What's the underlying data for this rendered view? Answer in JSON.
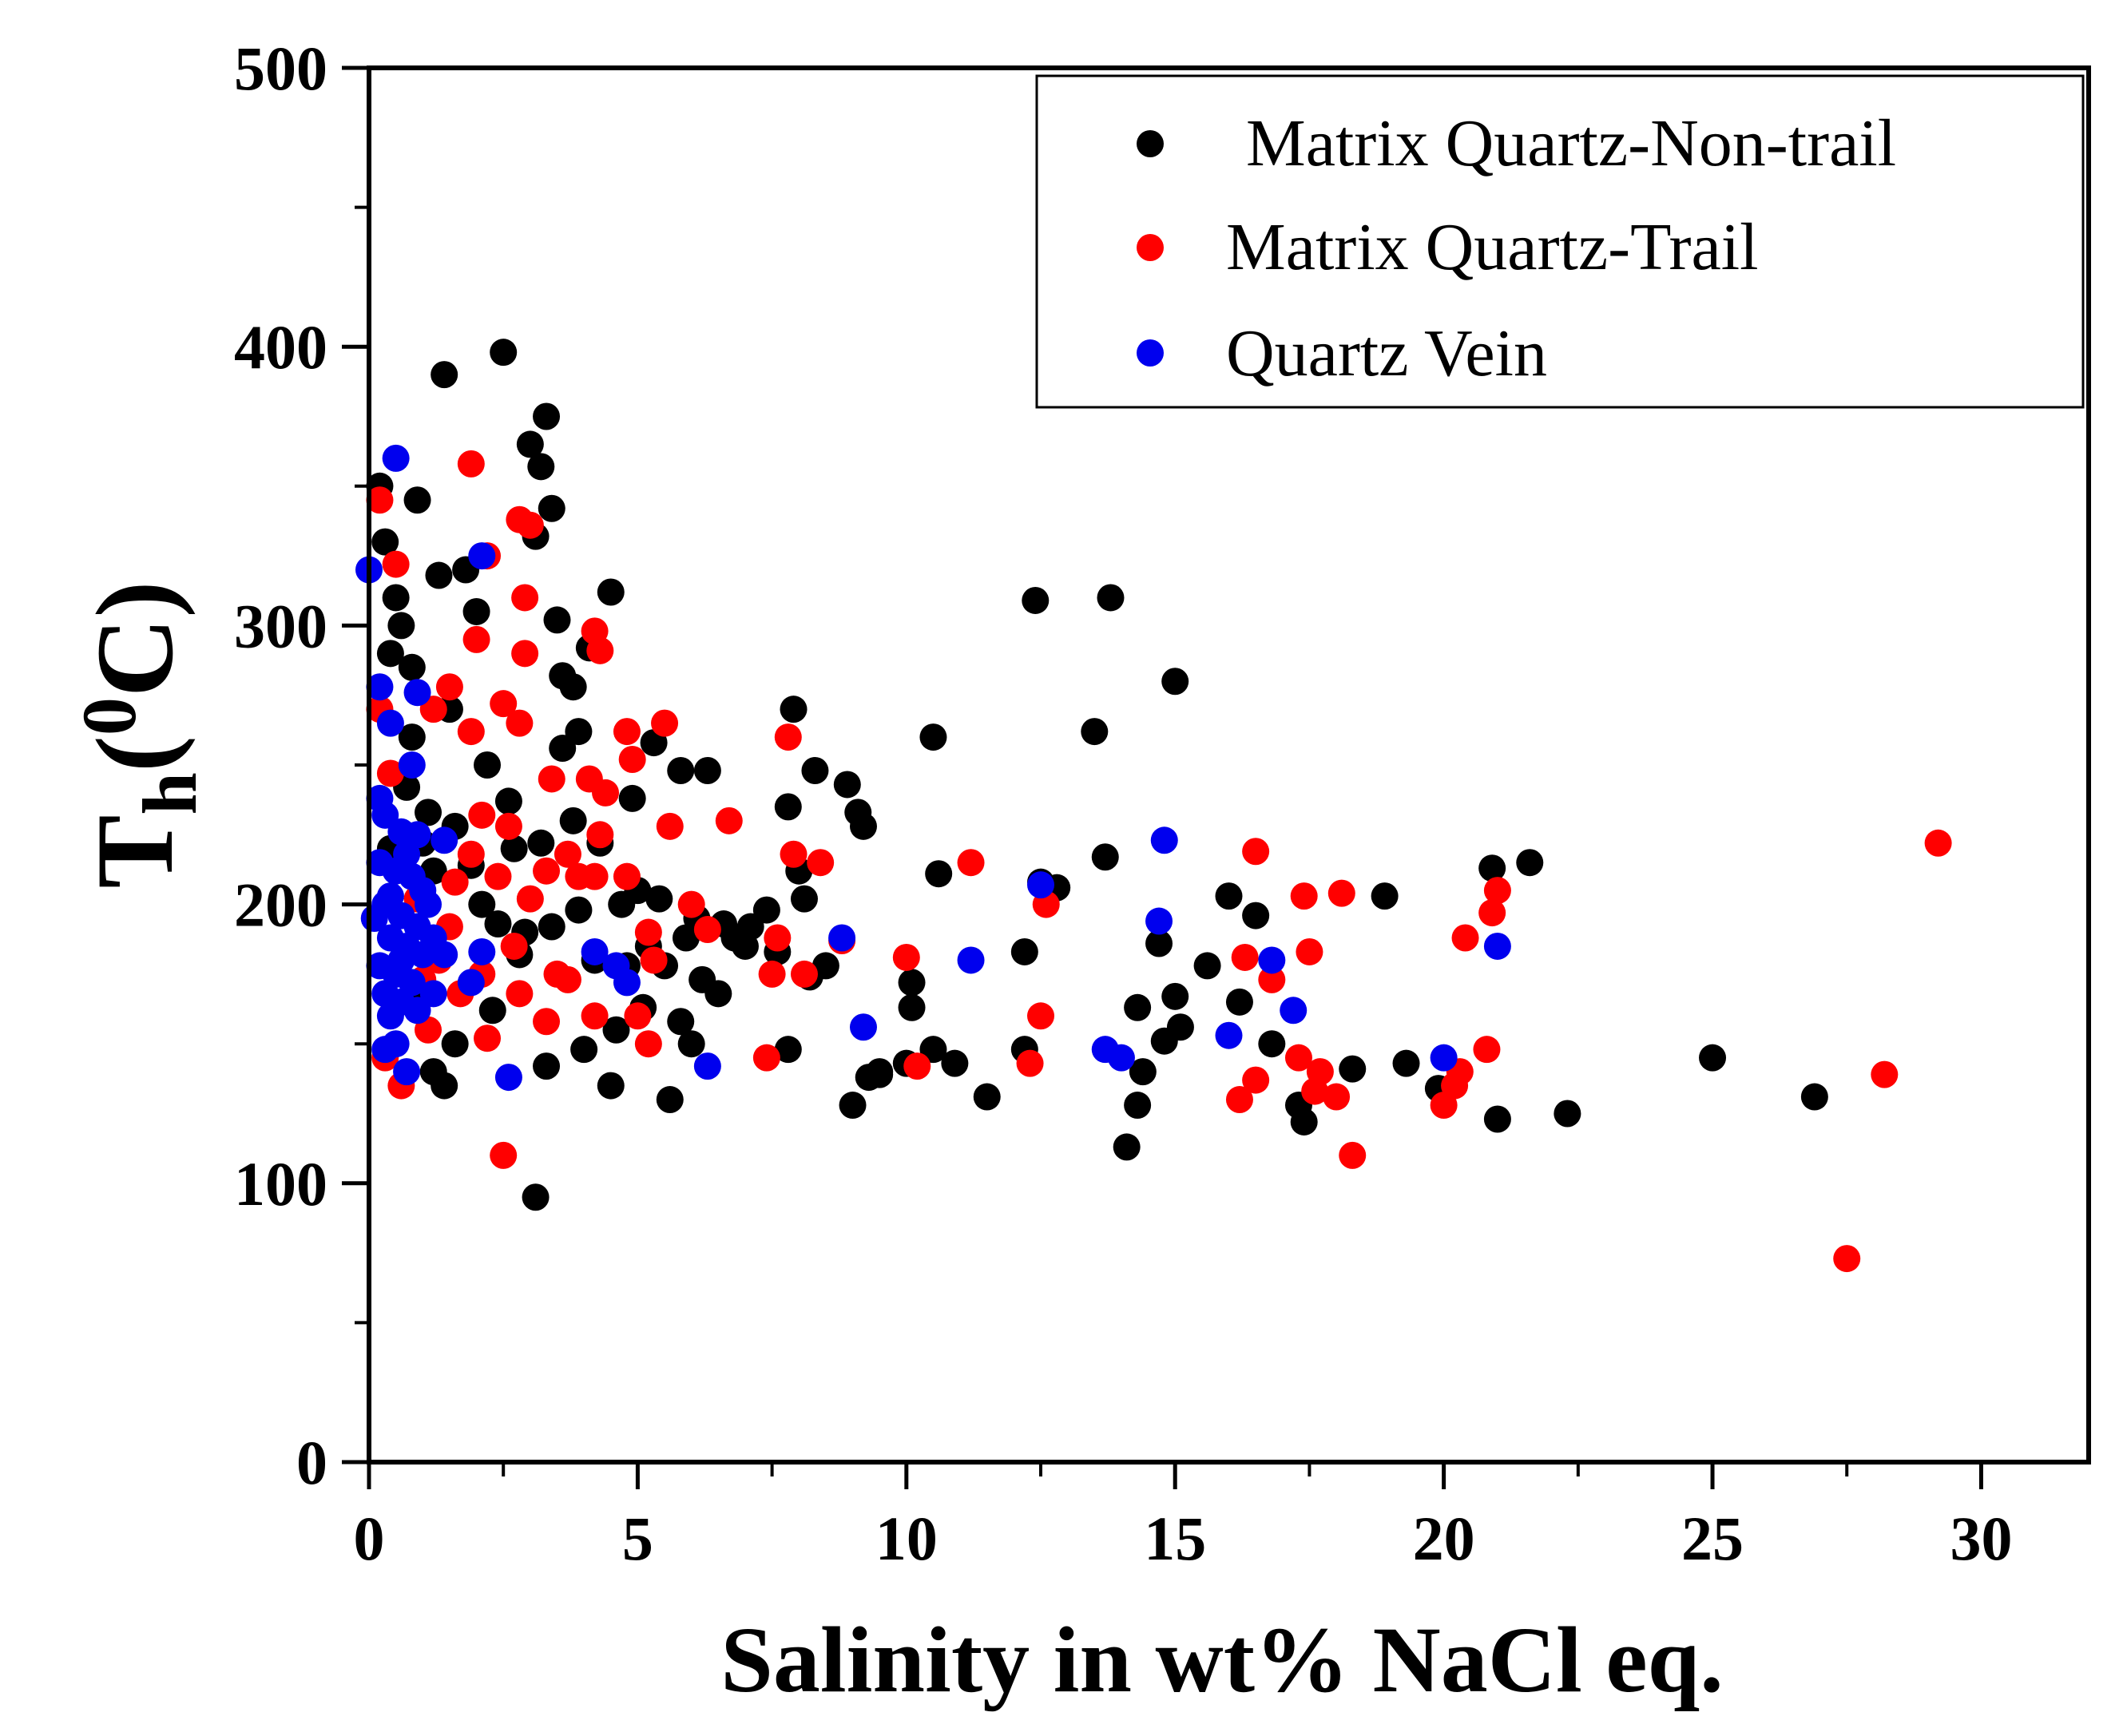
{
  "chart_data": {
    "type": "scatter",
    "xlabel": "Salinity in wt% NaCl eq.",
    "ylabel": {
      "main": "T",
      "sub": "h",
      "open": "(",
      "sup": "0",
      "unit": "C)"
    },
    "xlim": [
      0,
      32
    ],
    "ylim": [
      0,
      500
    ],
    "xticks": [
      0,
      5,
      10,
      15,
      20,
      25,
      30
    ],
    "yticks": [
      0,
      100,
      200,
      300,
      400,
      500
    ],
    "legend_position": "top-right",
    "series": [
      {
        "name": "Matrix Quartz-Non-trail",
        "color": "#000000",
        "points": [
          [
            0.2,
            350
          ],
          [
            0.3,
            330
          ],
          [
            0.5,
            310
          ],
          [
            0.6,
            300
          ],
          [
            0.4,
            290
          ],
          [
            0.8,
            285
          ],
          [
            0.9,
            345
          ],
          [
            1.3,
            318
          ],
          [
            1.8,
            320
          ],
          [
            2.0,
            305
          ],
          [
            2.5,
            398
          ],
          [
            1.4,
            390
          ],
          [
            3.0,
            365
          ],
          [
            3.3,
            375
          ],
          [
            3.2,
            357
          ],
          [
            3.4,
            342
          ],
          [
            3.1,
            332
          ],
          [
            3.5,
            302
          ],
          [
            3.6,
            282
          ],
          [
            3.9,
            262
          ],
          [
            4.1,
            292
          ],
          [
            3.8,
            278
          ],
          [
            4.5,
            312
          ],
          [
            4.9,
            238
          ],
          [
            5.3,
            258
          ],
          [
            5.8,
            248
          ],
          [
            6.3,
            248
          ],
          [
            5.9,
            188
          ],
          [
            5.5,
            178
          ],
          [
            5.1,
            163
          ],
          [
            5.8,
            158
          ],
          [
            6.2,
            173
          ],
          [
            6.6,
            193
          ],
          [
            6.8,
            188
          ],
          [
            7.1,
            192
          ],
          [
            7.6,
            183
          ],
          [
            7.4,
            198
          ],
          [
            7.8,
            148
          ],
          [
            8.1,
            202
          ],
          [
            8.5,
            178
          ],
          [
            8.3,
            248
          ],
          [
            8.9,
            243
          ],
          [
            9.1,
            233
          ],
          [
            9.2,
            228
          ],
          [
            9.0,
            128
          ],
          [
            9.3,
            138
          ],
          [
            9.5,
            140
          ],
          [
            10.0,
            143
          ],
          [
            10.1,
            172
          ],
          [
            10.1,
            163
          ],
          [
            10.5,
            148
          ],
          [
            10.6,
            211
          ],
          [
            10.5,
            260
          ],
          [
            10.9,
            143
          ],
          [
            11.5,
            131
          ],
          [
            12.2,
            148
          ],
          [
            12.2,
            183
          ],
          [
            12.4,
            309
          ],
          [
            12.5,
            208
          ],
          [
            12.8,
            206
          ],
          [
            13.5,
            262
          ],
          [
            13.8,
            310
          ],
          [
            13.7,
            217
          ],
          [
            14.1,
            113
          ],
          [
            14.3,
            163
          ],
          [
            14.3,
            128
          ],
          [
            14.4,
            140
          ],
          [
            14.7,
            186
          ],
          [
            14.8,
            151
          ],
          [
            15.0,
            167
          ],
          [
            15.1,
            156
          ],
          [
            15.0,
            280
          ],
          [
            15.6,
            178
          ],
          [
            16.0,
            203
          ],
          [
            16.2,
            165
          ],
          [
            16.5,
            196
          ],
          [
            16.8,
            150
          ],
          [
            17.3,
            128
          ],
          [
            17.4,
            122
          ],
          [
            18.3,
            141
          ],
          [
            18.9,
            203
          ],
          [
            19.3,
            143
          ],
          [
            19.9,
            134
          ],
          [
            20.9,
            213
          ],
          [
            21.0,
            123
          ],
          [
            21.6,
            215
          ],
          [
            22.3,
            125
          ],
          [
            25.0,
            145
          ],
          [
            26.9,
            131
          ],
          [
            7.9,
            270
          ],
          [
            8.2,
            174
          ],
          [
            9.5,
            139
          ],
          [
            2.2,
            250
          ],
          [
            1.1,
            233
          ],
          [
            0.8,
            260
          ],
          [
            1.5,
            270
          ],
          [
            2.7,
            220
          ],
          [
            1.6,
            150
          ],
          [
            0.9,
            165
          ],
          [
            1.2,
            140
          ],
          [
            1.4,
            135
          ],
          [
            2.3,
            162
          ],
          [
            2.8,
            182
          ],
          [
            3.1,
            95
          ],
          [
            3.3,
            142
          ],
          [
            3.8,
            230
          ],
          [
            4.0,
            148
          ],
          [
            4.2,
            180
          ],
          [
            4.5,
            135
          ],
          [
            4.7,
            200
          ],
          [
            5.0,
            205
          ],
          [
            5.6,
            130
          ],
          [
            6.0,
            150
          ],
          [
            6.5,
            168
          ],
          [
            7.0,
            185
          ],
          [
            7.8,
            235
          ],
          [
            8.0,
            212
          ],
          [
            6.1,
            195
          ],
          [
            5.2,
            185
          ],
          [
            2.1,
            200
          ],
          [
            2.4,
            193
          ],
          [
            1.9,
            214
          ],
          [
            2.6,
            237
          ],
          [
            3.4,
            192
          ],
          [
            3.9,
            198
          ],
          [
            4.3,
            222
          ],
          [
            0.7,
            242
          ],
          [
            1.0,
            222
          ],
          [
            1.6,
            228
          ],
          [
            2.9,
            190
          ],
          [
            3.2,
            222
          ],
          [
            4.6,
            155
          ],
          [
            5.4,
            202
          ],
          [
            0.4,
            220
          ],
          [
            1.2,
            212
          ],
          [
            3.6,
            256
          ],
          [
            4.8,
            178
          ]
        ]
      },
      {
        "name": "Matrix Quartz-Trail",
        "color": "#ff0000",
        "points": [
          [
            0.2,
            345
          ],
          [
            0.5,
            322
          ],
          [
            1.9,
            358
          ],
          [
            2.8,
            338
          ],
          [
            3.0,
            336
          ],
          [
            2.2,
            325
          ],
          [
            2.9,
            310
          ],
          [
            2.0,
            295
          ],
          [
            2.9,
            290
          ],
          [
            4.2,
            298
          ],
          [
            4.3,
            291
          ],
          [
            1.5,
            278
          ],
          [
            1.2,
            270
          ],
          [
            1.9,
            262
          ],
          [
            2.5,
            272
          ],
          [
            2.8,
            265
          ],
          [
            2.6,
            228
          ],
          [
            3.4,
            245
          ],
          [
            4.8,
            262
          ],
          [
            5.5,
            265
          ],
          [
            4.9,
            252
          ],
          [
            2.1,
            232
          ],
          [
            1.9,
            218
          ],
          [
            2.4,
            210
          ],
          [
            3.3,
            212
          ],
          [
            3.7,
            218
          ],
          [
            3.9,
            210
          ],
          [
            4.3,
            225
          ],
          [
            4.2,
            210
          ],
          [
            4.8,
            210
          ],
          [
            5.2,
            190
          ],
          [
            5.6,
            228
          ],
          [
            6.3,
            191
          ],
          [
            6.7,
            230
          ],
          [
            7.5,
            175
          ],
          [
            7.6,
            188
          ],
          [
            7.9,
            218
          ],
          [
            7.8,
            260
          ],
          [
            8.1,
            175
          ],
          [
            7.4,
            145
          ],
          [
            8.4,
            215
          ],
          [
            8.8,
            187
          ],
          [
            10.0,
            181
          ],
          [
            10.2,
            142
          ],
          [
            11.2,
            215
          ],
          [
            12.3,
            143
          ],
          [
            12.5,
            160
          ],
          [
            12.6,
            200
          ],
          [
            16.2,
            130
          ],
          [
            16.5,
            219
          ],
          [
            16.3,
            181
          ],
          [
            16.8,
            173
          ],
          [
            17.4,
            203
          ],
          [
            17.5,
            183
          ],
          [
            17.3,
            145
          ],
          [
            17.7,
            140
          ],
          [
            17.6,
            133
          ],
          [
            18.0,
            131
          ],
          [
            18.1,
            204
          ],
          [
            18.3,
            110
          ],
          [
            20.0,
            128
          ],
          [
            20.2,
            135
          ],
          [
            20.3,
            140
          ],
          [
            20.4,
            188
          ],
          [
            20.8,
            148
          ],
          [
            20.9,
            197
          ],
          [
            21.0,
            205
          ],
          [
            27.5,
            73
          ],
          [
            28.2,
            139
          ],
          [
            29.2,
            222
          ],
          [
            2.5,
            110
          ],
          [
            0.6,
            135
          ],
          [
            0.3,
            145
          ],
          [
            1.1,
            155
          ],
          [
            1.7,
            168
          ],
          [
            2.2,
            152
          ],
          [
            3.3,
            158
          ],
          [
            4.2,
            160
          ],
          [
            5.2,
            150
          ],
          [
            0.2,
            270
          ],
          [
            0.4,
            247
          ],
          [
            0.9,
            202
          ],
          [
            1.3,
            180
          ],
          [
            1.5,
            192
          ],
          [
            2.7,
            185
          ],
          [
            3.0,
            202
          ],
          [
            3.5,
            175
          ],
          [
            3.7,
            173
          ],
          [
            4.1,
            245
          ],
          [
            4.4,
            240
          ],
          [
            5.0,
            160
          ],
          [
            5.3,
            180
          ],
          [
            6.0,
            200
          ],
          [
            1.6,
            208
          ],
          [
            2.1,
            175
          ],
          [
            2.8,
            168
          ],
          [
            16.5,
            137
          ],
          [
            1.0,
            173
          ]
        ]
      },
      {
        "name": "Quartz Vein",
        "color": "#0000ee",
        "points": [
          [
            0.0,
            320
          ],
          [
            0.5,
            360
          ],
          [
            2.1,
            325
          ],
          [
            0.2,
            278
          ],
          [
            0.9,
            276
          ],
          [
            0.4,
            265
          ],
          [
            0.8,
            250
          ],
          [
            0.3,
            232
          ],
          [
            0.6,
            226
          ],
          [
            0.2,
            215
          ],
          [
            0.5,
            212
          ],
          [
            0.8,
            210
          ],
          [
            1.0,
            205
          ],
          [
            0.3,
            200
          ],
          [
            0.6,
            196
          ],
          [
            0.9,
            192
          ],
          [
            0.4,
            188
          ],
          [
            0.7,
            185
          ],
          [
            1.0,
            182
          ],
          [
            0.2,
            178
          ],
          [
            0.5,
            175
          ],
          [
            0.8,
            172
          ],
          [
            0.3,
            168
          ],
          [
            0.6,
            165
          ],
          [
            0.9,
            162
          ],
          [
            0.5,
            150
          ],
          [
            0.3,
            148
          ],
          [
            0.7,
            140
          ],
          [
            1.4,
            223
          ],
          [
            1.4,
            182
          ],
          [
            2.1,
            183
          ],
          [
            1.9,
            172
          ],
          [
            2.6,
            138
          ],
          [
            4.2,
            183
          ],
          [
            4.6,
            178
          ],
          [
            4.8,
            172
          ],
          [
            6.3,
            142
          ],
          [
            8.8,
            188
          ],
          [
            9.2,
            156
          ],
          [
            11.2,
            180
          ],
          [
            12.5,
            207
          ],
          [
            13.7,
            148
          ],
          [
            14.0,
            145
          ],
          [
            14.8,
            223
          ],
          [
            14.7,
            194
          ],
          [
            16.0,
            153
          ],
          [
            16.8,
            180
          ],
          [
            17.2,
            162
          ],
          [
            20.0,
            145
          ],
          [
            21.0,
            185
          ],
          [
            0.4,
            203
          ],
          [
            0.7,
            218
          ],
          [
            0.1,
            195
          ],
          [
            1.1,
            200
          ],
          [
            0.9,
            225
          ],
          [
            0.2,
            238
          ],
          [
            0.6,
            180
          ],
          [
            1.2,
            188
          ],
          [
            0.4,
            160
          ],
          [
            1.2,
            168
          ]
        ]
      }
    ]
  }
}
